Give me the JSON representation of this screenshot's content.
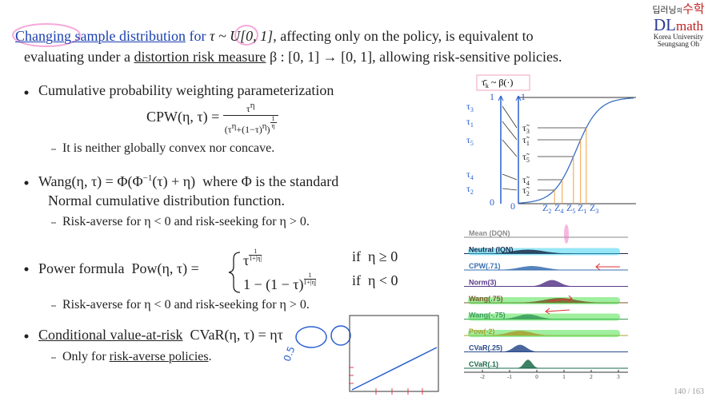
{
  "logo": {
    "korean_a": "딥러닝",
    "korean_b": "의",
    "korean_c": "수학",
    "dl": "DL",
    "math": "math",
    "university": "Korea University",
    "author": "Seungsang Oh"
  },
  "title": {
    "line1": [
      "Changing sample distribution",
      " for ",
      "τ ~ U[0, 1]",
      ", affecting only on the policy, is equivalent to"
    ],
    "line2": [
      "evaluating under a ",
      "distortion risk measure",
      " β : [0, 1] → [0, 1], allowing risk-sensitive policies."
    ]
  },
  "bullets": [
    {
      "text": "Cumulative probability weighting parameterization",
      "formula": {
        "lhs": "CPW(η, τ) =",
        "num": "τ",
        "num_exp": "η",
        "den_open": "(τ",
        "den_exp1": "η",
        "den_mid": "+(1−τ)",
        "den_exp2": "η",
        "den_close": ")",
        "root_num": "1",
        "root_den": "η"
      },
      "sub": "It is neither globally convex nor concave."
    },
    {
      "text": [
        "Wang(η, τ) = Φ(Φ",
        "−1",
        "(τ) + η)  where Φ is the standard"
      ],
      "text2": "Normal cumulative distribution function.",
      "sub": "Risk-averse for η < 0 and risk-seeking for η > 0."
    },
    {
      "text": "Power formula  Pow(η, τ) =",
      "cases": [
        {
          "expr": "τ",
          "exp_num": "1",
          "exp_den": "1+|η|",
          "cond": "if  η ≥ 0"
        },
        {
          "expr": "1 − (1 − τ)",
          "exp_num": "1",
          "exp_den": "1+|η|",
          "cond": "if  η < 0"
        }
      ],
      "sub": "Risk-averse for η < 0 and risk-seeking for η > 0."
    },
    {
      "text": "Conditional value-at-risk",
      "formula": "CVaR(η, τ) = ητ",
      "sub": [
        "Only for ",
        "risk-averse policies",
        "."
      ]
    }
  ],
  "annotation": "0.5",
  "diagram": {
    "top_label": [
      "τ̄",
      "k",
      " ~ β(·)"
    ],
    "left_top": "1",
    "left_bottom": "0",
    "mid_top": "1",
    "mid_bottom": "0",
    "left_labels": [
      {
        "base": "τ",
        "sub": "3"
      },
      {
        "base": "τ",
        "sub": "1"
      },
      {
        "base": "τ",
        "sub": "5"
      },
      {
        "base": "τ",
        "sub": "4"
      },
      {
        "base": "τ",
        "sub": "2"
      }
    ],
    "mid_labels": [
      {
        "base": "τ̃",
        "sub": "3"
      },
      {
        "base": "τ̃",
        "sub": "1"
      },
      {
        "base": "τ̃",
        "sub": "5"
      },
      {
        "base": "τ̃",
        "sub": "4"
      },
      {
        "base": "τ̃",
        "sub": "2"
      }
    ],
    "z_labels": [
      {
        "base": "Z",
        "sub": "2"
      },
      {
        "base": "Z",
        "sub": "4"
      },
      {
        "base": "Z",
        "sub": "5"
      },
      {
        "base": "Z",
        "sub": "1"
      },
      {
        "base": "Z",
        "sub": "3"
      }
    ]
  },
  "distributions": {
    "rows": [
      {
        "name": "Mean (DQN)",
        "color": "#8a8a8a"
      },
      {
        "name": "Neutral (IQN)",
        "color": "#1c2a4a"
      },
      {
        "name": "CPW(.71)",
        "color": "#3a6fb0"
      },
      {
        "name": "Norm(3)",
        "color": "#5a3a8a"
      },
      {
        "name": "Wang(.75)",
        "color": "#7a5a2a"
      },
      {
        "name": "Wang(-.75)",
        "color": "#3a9a5a"
      },
      {
        "name": "Pow(-2)",
        "color": "#a8a030"
      },
      {
        "name": "CVaR(.25)",
        "color": "#2a4a8a"
      },
      {
        "name": "CVaR(.1)",
        "color": "#1a6a4a"
      }
    ],
    "axis_labels": [
      "-2",
      "-1",
      "0",
      "1",
      "2",
      "3"
    ]
  },
  "page_number": "140 / 163"
}
